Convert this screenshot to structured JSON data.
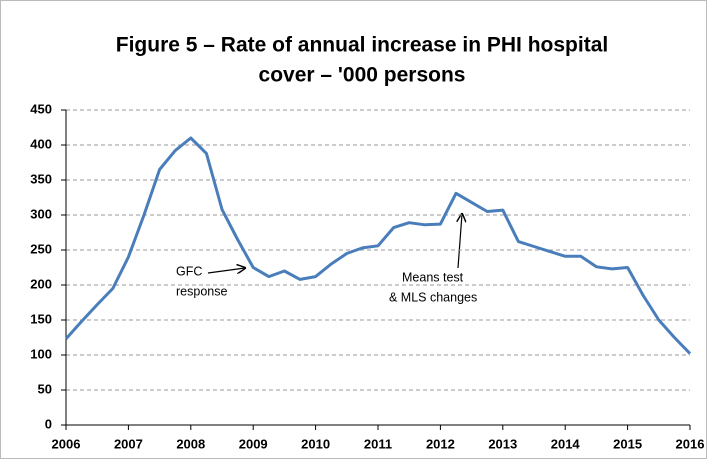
{
  "chart_data": {
    "type": "line",
    "title": [
      "Figure 5 – Rate of annual increase in PHI hospital",
      "cover – '000 persons"
    ],
    "x": [
      2006,
      2006.25,
      2006.5,
      2006.75,
      2007,
      2007.25,
      2007.5,
      2007.75,
      2008,
      2008.25,
      2008.5,
      2008.75,
      2009,
      2009.25,
      2009.5,
      2009.75,
      2010,
      2010.25,
      2010.5,
      2010.75,
      2011,
      2011.25,
      2011.5,
      2011.75,
      2012,
      2012.25,
      2012.5,
      2012.75,
      2013,
      2013.25,
      2013.5,
      2013.75,
      2014,
      2014.25,
      2014.5,
      2014.75,
      2015,
      2015.25,
      2015.5,
      2015.75,
      2016
    ],
    "series": [
      {
        "color": "#4a7ebb",
        "values": [
          123,
          148,
          172,
          195,
          240,
          300,
          365,
          392,
          410,
          388,
          308,
          265,
          225,
          212,
          220,
          208,
          212,
          230,
          245,
          253,
          256,
          282,
          289,
          286,
          287,
          331,
          318,
          305,
          307,
          262,
          255,
          248,
          241,
          241,
          226,
          223,
          225,
          185,
          150,
          125,
          102
        ]
      }
    ],
    "xlim": [
      2006,
      2016
    ],
    "xticks": [
      2006,
      2007,
      2008,
      2009,
      2010,
      2011,
      2012,
      2013,
      2014,
      2015,
      2016
    ],
    "ylim": [
      0,
      450
    ],
    "yticks": [
      0,
      50,
      100,
      150,
      200,
      250,
      300,
      350,
      400,
      450
    ],
    "grid": true,
    "annotations": [
      [
        "GFC",
        "response"
      ],
      [
        "Means test",
        "& MLS changes"
      ]
    ]
  }
}
